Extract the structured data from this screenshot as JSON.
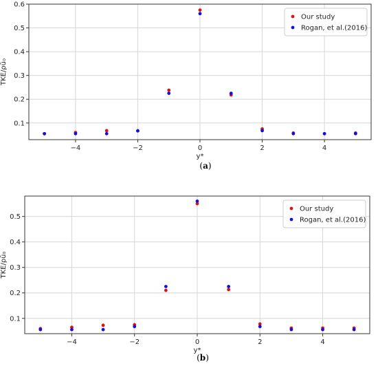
{
  "chart_data": [
    {
      "type": "scatter",
      "caption_letter": "a",
      "xlabel": "y*",
      "ylabel": "TKE/ρū₀",
      "xlim": [
        -5.5,
        5.5
      ],
      "ylim": [
        0.03,
        0.6
      ],
      "x_ticks": [
        -4,
        -2,
        0,
        2,
        4
      ],
      "x_tick_labels": [
        "−4",
        "−2",
        "0",
        "2",
        "4"
      ],
      "y_ticks": [
        0.1,
        0.2,
        0.3,
        0.4,
        0.5,
        0.6
      ],
      "y_tick_labels": [
        "0.1",
        "0.2",
        "0.3",
        "0.4",
        "0.5",
        "0.6"
      ],
      "grid": true,
      "legend_position": "top-right",
      "series": [
        {
          "name": "Our study",
          "color": "#e01010",
          "x": [
            -5,
            -4,
            -3,
            -2,
            -1,
            0,
            1,
            2,
            3,
            4,
            5
          ],
          "y": [
            0.055,
            0.06,
            0.068,
            0.067,
            0.238,
            0.575,
            0.218,
            0.075,
            0.058,
            0.055,
            0.058
          ]
        },
        {
          "name": "Rogan, et al.(2016)",
          "color": "#1010e0",
          "x": [
            -5,
            -4,
            -3,
            -2,
            -1,
            0,
            1,
            2,
            3,
            4,
            5
          ],
          "y": [
            0.055,
            0.055,
            0.055,
            0.067,
            0.225,
            0.56,
            0.225,
            0.068,
            0.055,
            0.055,
            0.055
          ]
        }
      ]
    },
    {
      "type": "scatter",
      "caption_letter": "b",
      "xlabel": "y*",
      "ylabel": "TKE/ρū₀",
      "xlim": [
        -5.5,
        5.5
      ],
      "ylim": [
        0.04,
        0.58
      ],
      "x_ticks": [
        -4,
        -2,
        0,
        2,
        4
      ],
      "x_tick_labels": [
        "−4",
        "−2",
        "0",
        "2",
        "4"
      ],
      "y_ticks": [
        0.1,
        0.2,
        0.3,
        0.4,
        0.5
      ],
      "y_tick_labels": [
        "0.1",
        "0.2",
        "0.3",
        "0.4",
        "0.5"
      ],
      "grid": true,
      "legend_position": "top-right",
      "series": [
        {
          "name": "Our study",
          "color": "#e01010",
          "x": [
            -5,
            -4,
            -3,
            -2,
            -1,
            0,
            1,
            2,
            3,
            4,
            5
          ],
          "y": [
            0.06,
            0.065,
            0.073,
            0.075,
            0.21,
            0.55,
            0.213,
            0.078,
            0.062,
            0.062,
            0.062
          ]
        },
        {
          "name": "Rogan, et al.(2016)",
          "color": "#1010e0",
          "x": [
            -5,
            -4,
            -3,
            -2,
            -1,
            0,
            1,
            2,
            3,
            4,
            5
          ],
          "y": [
            0.056,
            0.056,
            0.056,
            0.068,
            0.225,
            0.56,
            0.225,
            0.068,
            0.056,
            0.056,
            0.056
          ]
        }
      ]
    }
  ]
}
